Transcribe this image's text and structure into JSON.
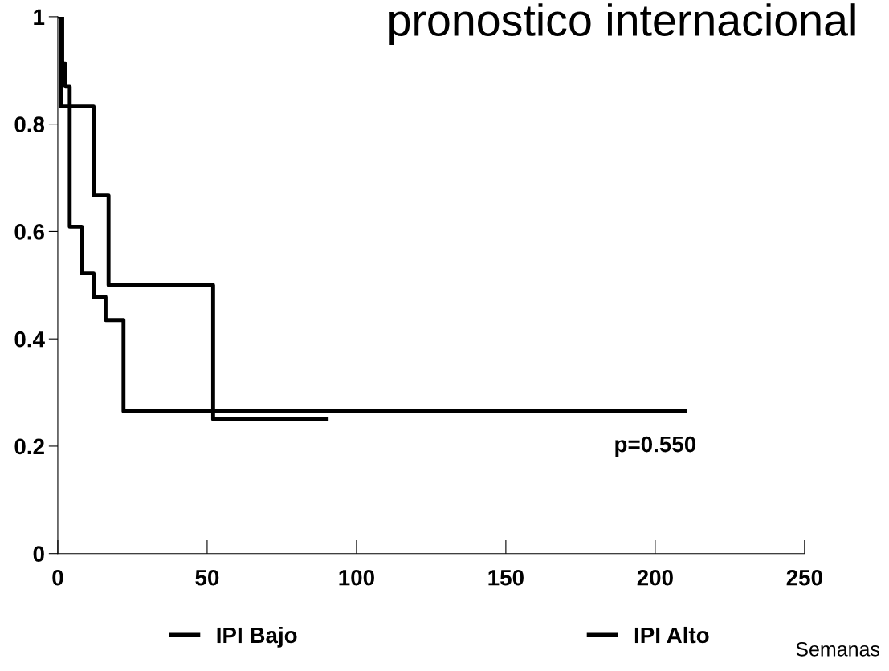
{
  "chart_data": {
    "type": "step",
    "title": "pronostico internacional",
    "xlabel": "Semanas",
    "series": [
      {
        "name": "IPI Bajo",
        "color": "#000000",
        "x": [
          0,
          1,
          12,
          17,
          52,
          90
        ],
        "values": [
          1,
          0.833,
          0.667,
          0.5,
          0.25,
          0.25
        ]
      },
      {
        "name": "IPI Alto",
        "color": "#000000",
        "x": [
          0,
          1.5,
          2.5,
          4,
          8,
          12,
          16,
          22,
          210
        ],
        "values": [
          1,
          0.913,
          0.87,
          0.609,
          0.522,
          0.478,
          0.435,
          0.265,
          0.265
        ]
      }
    ],
    "xlim": [
      0,
      250
    ],
    "xticks": [
      0,
      50,
      100,
      150,
      200,
      250
    ],
    "ylim": [
      0,
      1
    ],
    "yticks": [
      0,
      0.2,
      0.4,
      0.6,
      0.8,
      1
    ],
    "annotations": [
      "p=0.550"
    ],
    "grid": false,
    "legend": "bottom",
    "line_style": "solid",
    "marker": "none"
  }
}
